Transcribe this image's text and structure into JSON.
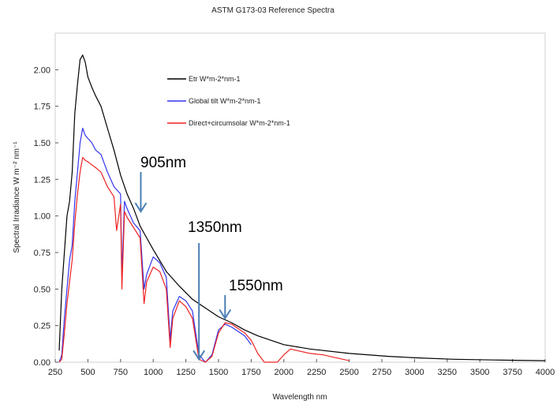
{
  "chart_data": {
    "type": "line",
    "title": "ASTM G173-03 Reference Spectra",
    "xlabel": "Wavelength nm",
    "ylabel": "Spectral Irradiance W m⁻² nm⁻¹",
    "xlim": [
      250,
      4000
    ],
    "ylim": [
      0,
      2.25
    ],
    "xticks": [
      "250",
      "500",
      "750",
      "1000",
      "1250",
      "1500",
      "1750",
      "2000",
      "2250",
      "2500",
      "2750",
      "3000",
      "3250",
      "3500",
      "3750",
      "4000"
    ],
    "yticks": [
      "0.00",
      "0.25",
      "0.50",
      "0.75",
      "1.00",
      "1.25",
      "1.50",
      "1.75",
      "2.00"
    ],
    "grid": false,
    "legend_position": "top-left",
    "series": [
      {
        "name": "Etr W*m-2*nm-1",
        "color": "#000000",
        "x": [
          280,
          300,
          320,
          340,
          360,
          380,
          400,
          420,
          440,
          460,
          480,
          500,
          530,
          560,
          600,
          650,
          700,
          750,
          800,
          850,
          900,
          950,
          1000,
          1100,
          1200,
          1300,
          1400,
          1500,
          1600,
          1700,
          1800,
          2000,
          2200,
          2500,
          2800,
          3000,
          3300,
          3600,
          4000
        ],
        "y": [
          0.08,
          0.5,
          0.75,
          1.0,
          1.1,
          1.3,
          1.7,
          1.9,
          2.07,
          2.1,
          2.05,
          1.95,
          1.88,
          1.82,
          1.75,
          1.6,
          1.45,
          1.28,
          1.15,
          1.05,
          0.93,
          0.85,
          0.77,
          0.62,
          0.52,
          0.43,
          0.37,
          0.31,
          0.27,
          0.22,
          0.18,
          0.12,
          0.09,
          0.06,
          0.04,
          0.03,
          0.02,
          0.015,
          0.01
        ]
      },
      {
        "name": "Global tilt  W*m-2*nm-1",
        "color": "#3333ee",
        "x": [
          280,
          300,
          320,
          340,
          360,
          380,
          400,
          420,
          440,
          460,
          480,
          500,
          530,
          560,
          600,
          650,
          700,
          750,
          760,
          780,
          800,
          850,
          900,
          930,
          950,
          1000,
          1050,
          1100,
          1130,
          1150,
          1200,
          1250,
          1300,
          1350,
          1400,
          1450,
          1500,
          1550,
          1600,
          1700,
          1750
        ],
        "y": [
          0.0,
          0.05,
          0.3,
          0.5,
          0.7,
          0.8,
          1.1,
          1.3,
          1.5,
          1.6,
          1.55,
          1.53,
          1.5,
          1.45,
          1.42,
          1.3,
          1.2,
          1.15,
          0.6,
          1.1,
          1.05,
          0.95,
          0.9,
          0.5,
          0.6,
          0.72,
          0.68,
          0.58,
          0.15,
          0.35,
          0.45,
          0.42,
          0.35,
          0.05,
          0.0,
          0.05,
          0.22,
          0.26,
          0.24,
          0.18,
          0.12
        ]
      },
      {
        "name": "Direct+circumsolar W*m-2*nm-1",
        "color": "#ee2222",
        "x": [
          280,
          300,
          320,
          340,
          360,
          380,
          400,
          420,
          440,
          460,
          480,
          500,
          530,
          560,
          600,
          650,
          700,
          720,
          750,
          760,
          780,
          800,
          850,
          900,
          930,
          950,
          1000,
          1050,
          1100,
          1130,
          1150,
          1200,
          1250,
          1300,
          1350,
          1400,
          1450,
          1500,
          1550,
          1600,
          1650,
          1700,
          1750,
          1800,
          1850,
          1950,
          2000,
          2050,
          2100,
          2200,
          2300,
          2400,
          2500
        ],
        "y": [
          0.0,
          0.02,
          0.2,
          0.4,
          0.55,
          0.7,
          0.95,
          1.15,
          1.3,
          1.4,
          1.38,
          1.37,
          1.35,
          1.33,
          1.3,
          1.2,
          1.13,
          0.9,
          1.08,
          0.5,
          1.03,
          0.99,
          0.92,
          0.85,
          0.4,
          0.55,
          0.65,
          0.62,
          0.5,
          0.1,
          0.3,
          0.42,
          0.38,
          0.3,
          0.02,
          0.0,
          0.04,
          0.2,
          0.27,
          0.26,
          0.23,
          0.2,
          0.15,
          0.06,
          0.0,
          0.0,
          0.05,
          0.09,
          0.08,
          0.06,
          0.05,
          0.03,
          0.01
        ]
      }
    ],
    "annotations": [
      {
        "text": "905nm",
        "x": 905,
        "y_tip": 1.03
      },
      {
        "text": "1350nm",
        "x": 1350,
        "y_tip": 0.02
      },
      {
        "text": "1550nm",
        "x": 1550,
        "y_tip": 0.3
      }
    ]
  }
}
